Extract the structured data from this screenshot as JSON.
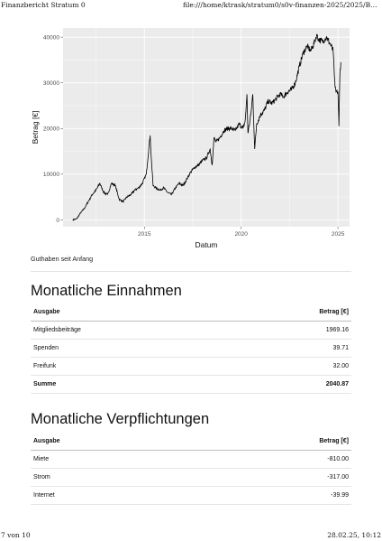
{
  "print_header": {
    "title": "Finanzbericht Stratum 0",
    "url": "file:///home/ktrask/stratum0/s0v-finanzen-2025/2025/Berich..."
  },
  "print_footer": {
    "page": "7 von 10",
    "timestamp": "28.02.25, 10:12"
  },
  "chart_caption": "Guthaben seit Anfang",
  "chart_data": {
    "type": "line",
    "xlabel": "Datum",
    "ylabel": "Betrag [€]",
    "xlim": [
      2010.8,
      2025.6
    ],
    "ylim": [
      -1500,
      42000
    ],
    "xticks": [
      2015,
      2020,
      2025
    ],
    "yticks": [
      0,
      10000,
      20000,
      30000,
      40000
    ],
    "ytick_labels": [
      "0",
      "10000",
      "20000",
      "30000",
      "40000"
    ],
    "grid": true,
    "panel_background": "#ebebeb",
    "grid_color": "#ffffff",
    "line_color": "#000000",
    "series": [
      {
        "x": [
          2011.3,
          2011.5,
          2011.7,
          2011.9,
          2012.1,
          2012.3,
          2012.5,
          2012.7,
          2012.9,
          2013.1,
          2013.3,
          2013.5,
          2013.7,
          2013.9,
          2014.1,
          2014.3,
          2014.5,
          2014.7,
          2014.9,
          2015.1,
          2015.25,
          2015.3,
          2015.35,
          2015.45,
          2015.6,
          2015.8,
          2016.0,
          2016.2,
          2016.4,
          2016.6,
          2016.8,
          2017.0,
          2017.2,
          2017.4,
          2017.6,
          2017.8,
          2018.0,
          2018.2,
          2018.4,
          2018.5,
          2018.6,
          2018.7,
          2018.9,
          2019.1,
          2019.3,
          2019.5,
          2019.7,
          2019.9,
          2020.1,
          2020.2,
          2020.25,
          2020.3,
          2020.35,
          2020.5,
          2020.6,
          2020.7,
          2020.8,
          2021.0,
          2021.2,
          2021.4,
          2021.6,
          2021.8,
          2022.0,
          2022.2,
          2022.4,
          2022.6,
          2022.8,
          2023.0,
          2023.2,
          2023.4,
          2023.6,
          2023.8,
          2023.9,
          2024.0,
          2024.2,
          2024.4,
          2024.6,
          2024.75,
          2024.8,
          2024.85,
          2024.9,
          2025.0,
          2025.05,
          2025.1,
          2025.15
        ],
        "y": [
          0,
          200,
          1500,
          2500,
          4000,
          5500,
          6500,
          8000,
          6000,
          5500,
          8000,
          7500,
          4500,
          4000,
          5000,
          5500,
          6500,
          7000,
          8000,
          10000,
          16500,
          18500,
          14000,
          7500,
          7000,
          6500,
          7000,
          6000,
          5500,
          7000,
          8000,
          7500,
          9000,
          10500,
          11500,
          12000,
          13000,
          13500,
          15500,
          12000,
          18000,
          17000,
          18000,
          19500,
          20000,
          20000,
          19500,
          21000,
          20000,
          21500,
          24000,
          27500,
          19000,
          23000,
          27500,
          15500,
          21000,
          23000,
          24000,
          26000,
          25500,
          26500,
          27500,
          27000,
          28000,
          28500,
          30000,
          33500,
          36500,
          38000,
          37000,
          39000,
          40500,
          39500,
          39000,
          40000,
          38500,
          37000,
          33000,
          29000,
          28000,
          28000,
          20500,
          32000,
          34500
        ]
      }
    ]
  },
  "einnahmen": {
    "title": "Monatliche Einnahmen",
    "columns": [
      "Ausgabe",
      "Betrag [€]"
    ],
    "rows": [
      {
        "name": "Mitgliedsbeiträge",
        "amount": "1969.16"
      },
      {
        "name": "Spenden",
        "amount": "39.71"
      },
      {
        "name": "Freifunk",
        "amount": "32.00"
      }
    ],
    "sum": {
      "name": "Summe",
      "amount": "2040.87"
    }
  },
  "verpflichtungen": {
    "title": "Monatliche Verpflichtungen",
    "columns": [
      "Ausgabe",
      "Betrag [€]"
    ],
    "rows": [
      {
        "name": "Miete",
        "amount": "-810.00"
      },
      {
        "name": "Strom",
        "amount": "-317.00"
      },
      {
        "name": "Internet",
        "amount": "-39.99"
      }
    ]
  }
}
